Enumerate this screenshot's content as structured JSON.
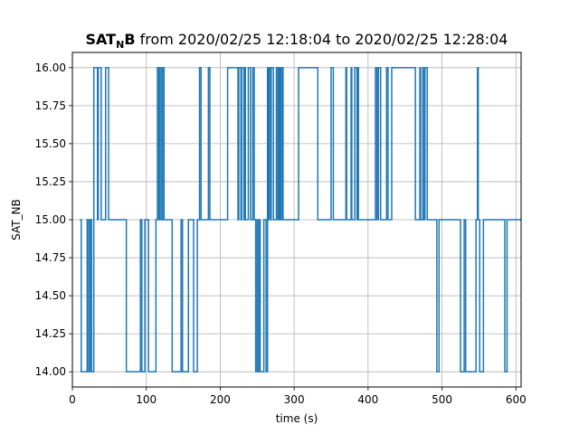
{
  "chart_data": {
    "type": "line",
    "title_bold": "SAT",
    "title_sub": "N",
    "title_bold_tail": "B",
    "title_rest": " from 2020/02/25 12:18:04 to 2020/02/25 12:28:04",
    "xlabel": "time (s)",
    "ylabel": "SAT_NB",
    "xlim": [
      0,
      607
    ],
    "ylim": [
      13.9,
      16.1
    ],
    "x_ticks": [
      0,
      100,
      200,
      300,
      400,
      500,
      600
    ],
    "y_ticks": [
      14.0,
      14.25,
      14.5,
      14.75,
      15.0,
      15.25,
      15.5,
      15.75,
      16.0
    ],
    "y_tick_labels": [
      "14.00",
      "14.25",
      "14.50",
      "14.75",
      "15.00",
      "15.25",
      "15.50",
      "15.75",
      "16.00"
    ],
    "grid": true,
    "line_color": "#1f77b4",
    "series": [
      {
        "step": "post",
        "x": [
          10,
          12,
          20,
          22,
          24,
          26,
          29,
          34,
          35,
          39,
          45,
          49,
          66,
          73,
          75,
          92,
          94,
          98,
          99,
          103,
          113,
          115,
          117,
          118,
          120,
          122,
          124,
          133,
          135,
          147,
          149,
          155,
          157,
          164,
          166,
          169,
          172,
          174,
          183,
          184,
          186,
          187,
          210,
          212,
          213,
          224,
          225,
          228,
          229,
          232,
          233,
          234,
          238,
          241,
          244,
          246,
          248,
          250,
          251,
          253,
          254,
          256,
          259,
          262,
          264,
          265,
          266,
          268,
          269,
          272,
          276,
          278,
          279,
          280,
          281,
          282,
          284,
          285,
          305,
          306,
          319,
          331,
          332,
          350,
          353,
          356,
          370,
          371,
          377,
          378,
          381,
          382,
          385,
          386,
          387,
          388,
          390,
          393,
          410,
          412,
          414,
          417,
          420,
          425,
          427,
          432,
          462,
          464,
          466,
          470,
          471,
          473,
          474,
          475,
          477,
          480,
          493,
          496,
          525,
          527,
          530,
          532,
          545,
          546,
          548,
          549,
          551,
          556,
          585,
          588,
          590,
          607
        ],
        "y": [
          15,
          14,
          15,
          14,
          15,
          14,
          16,
          15,
          16,
          15,
          16,
          15,
          15,
          14,
          14,
          15,
          14,
          15,
          15,
          14,
          15,
          16,
          15,
          16,
          15,
          16,
          15,
          15,
          14,
          15,
          14,
          14,
          15,
          14,
          14,
          15,
          16,
          15,
          15,
          16,
          15,
          15,
          16,
          16,
          16,
          15,
          16,
          15,
          16,
          15,
          16,
          15,
          16,
          15,
          16,
          15,
          14,
          15,
          14,
          15,
          14,
          14,
          15,
          14,
          16,
          15,
          16,
          15,
          16,
          15,
          16,
          15,
          16,
          15,
          16,
          15,
          16,
          15,
          15,
          16,
          16,
          16,
          15,
          16,
          15,
          15,
          16,
          15,
          16,
          15,
          15,
          16,
          15,
          16,
          15,
          15,
          15,
          15,
          16,
          15,
          16,
          15,
          15,
          16,
          15,
          16,
          16,
          15,
          15,
          16,
          15,
          15,
          16,
          15,
          16,
          15,
          14,
          15,
          14,
          14,
          15,
          14,
          14,
          15,
          16,
          15,
          14,
          15,
          14,
          15,
          15,
          15
        ]
      }
    ]
  }
}
